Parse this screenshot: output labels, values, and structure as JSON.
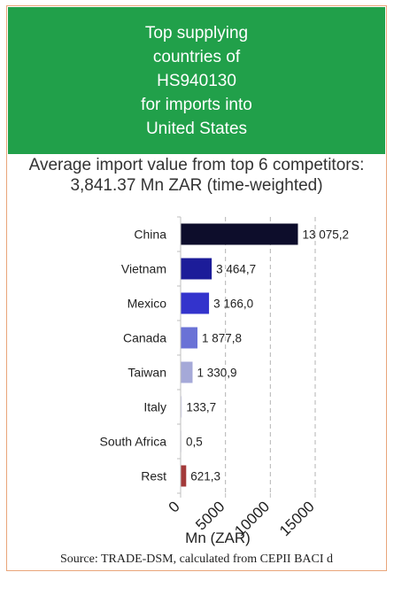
{
  "header": {
    "title_lines": [
      "Top supplying",
      "countries of",
      "HS940130",
      "for imports into",
      "United States"
    ]
  },
  "subtitle": {
    "line1": "Average import value from top 6 competitors:",
    "line2": "3,841.37 Mn ZAR (time-weighted)"
  },
  "chart_data": {
    "type": "bar",
    "orientation": "horizontal",
    "categories": [
      "China",
      "Vietnam",
      "Mexico",
      "Canada",
      "Taiwan",
      "Italy",
      "South Africa",
      "Rest"
    ],
    "values": [
      13075.2,
      3464.7,
      3166.0,
      1877.8,
      1330.9,
      133.7,
      0.5,
      621.3
    ],
    "value_labels": [
      "13 075,2",
      "3 464,7",
      "3 166,0",
      "1 877,8",
      "1 330,9",
      "133,7",
      "0,5",
      "621,3"
    ],
    "bar_colors": [
      "#0d0d2b",
      "#1c1c99",
      "#3333cc",
      "#6a72d6",
      "#a5a9d8",
      "#d9d9f2",
      "#e6e6f0",
      "#a33a3a"
    ],
    "x_ticks": [
      0,
      5000,
      10000,
      15000
    ],
    "xlim": [
      0,
      15000
    ],
    "xlabel": "Mn (ZAR)",
    "ylabel": "",
    "title": "",
    "grid": "vertical dashed"
  },
  "source": {
    "text": "Source: TRADE-DSM, calculated from CEPII BACI d"
  }
}
